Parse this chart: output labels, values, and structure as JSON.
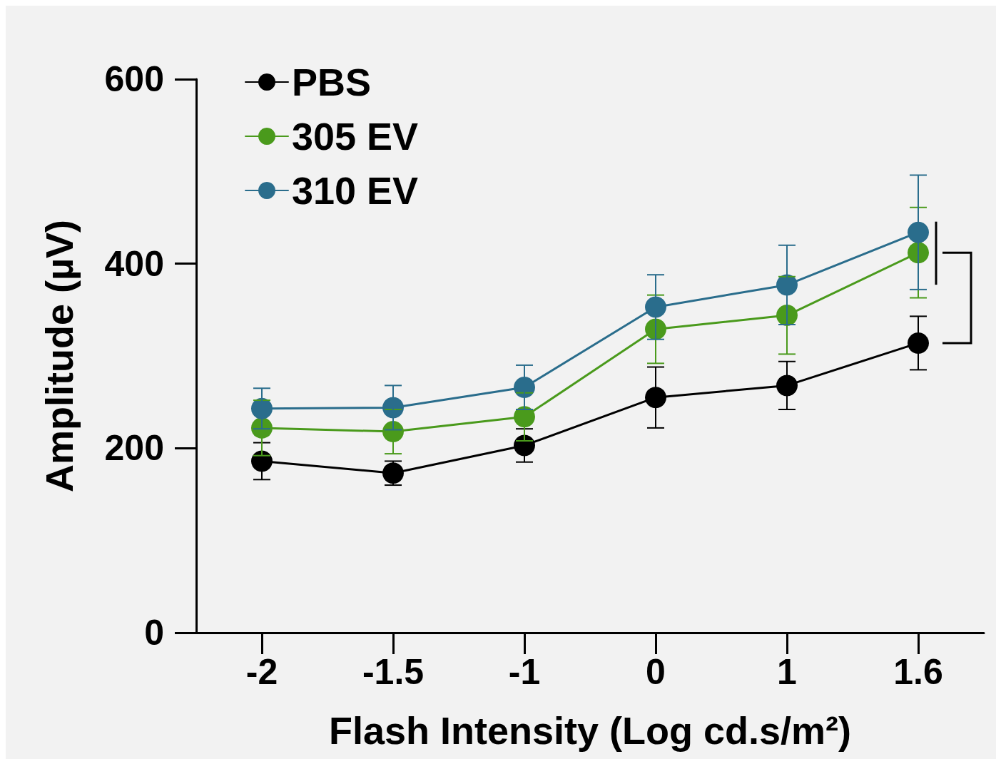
{
  "chart_data": {
    "type": "line",
    "xlabel": "Flash Intensity (Log cd.s/m²)",
    "ylabel": "Amplitude (µV)",
    "categories": [
      "-2",
      "-1.5",
      "-1",
      "0",
      "1",
      "1.6"
    ],
    "series": [
      {
        "name": "PBS",
        "color": "#000000",
        "values": [
          186,
          173,
          203,
          255,
          268,
          314
        ],
        "errors": [
          20,
          13,
          18,
          33,
          26,
          29
        ]
      },
      {
        "name": "305 EV",
        "color": "#4a9a1c",
        "values": [
          222,
          218,
          234,
          329,
          344,
          412
        ],
        "errors": [
          30,
          24,
          26,
          37,
          42,
          49
        ]
      },
      {
        "name": "310 EV",
        "color": "#2a6d8c",
        "values": [
          243,
          244,
          266,
          353,
          377,
          434
        ],
        "errors": [
          22,
          24,
          24,
          35,
          43,
          62
        ]
      }
    ],
    "ylim": [
      0,
      600
    ],
    "yticks": [
      0,
      200,
      400,
      600
    ],
    "grid": false,
    "legend": "top left",
    "marker": "circle",
    "line_style": "solid"
  }
}
